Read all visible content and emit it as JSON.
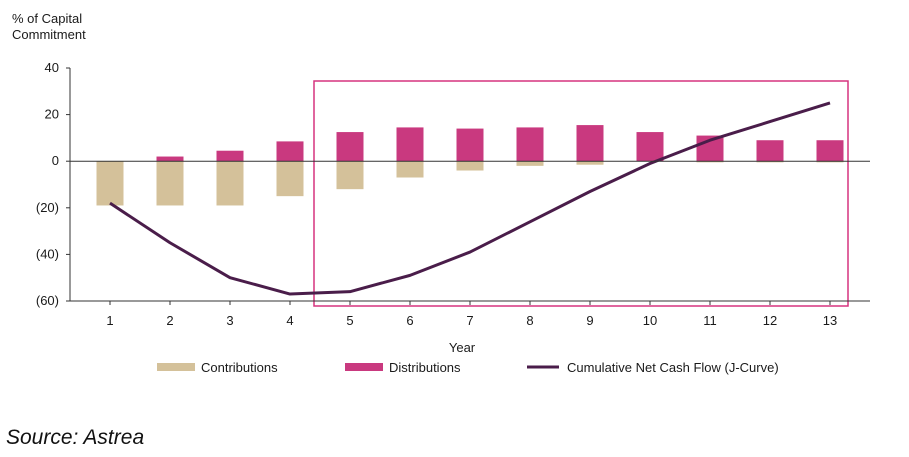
{
  "chart_data": {
    "type": "bar",
    "ylabel": "% of Capital\nCommitment",
    "xlabel": "Year",
    "categories": [
      "1",
      "2",
      "3",
      "4",
      "5",
      "6",
      "7",
      "8",
      "9",
      "10",
      "11",
      "12",
      "13"
    ],
    "ylim": [
      -60,
      40
    ],
    "yticks": [
      40,
      20,
      0,
      -20,
      -40,
      -60
    ],
    "ytick_labels": [
      "40",
      "20",
      "0",
      "(20)",
      "(40)",
      "(60)"
    ],
    "grid": false,
    "legend_position": "bottom",
    "series": [
      {
        "name": "Contributions",
        "kind": "bar",
        "color": "#d4c19a",
        "values": [
          -19,
          -19,
          -19,
          -15,
          -12,
          -7,
          -4,
          -2,
          -1.5,
          0,
          -0.5,
          -0.5,
          -0.5
        ]
      },
      {
        "name": "Distributions",
        "kind": "bar",
        "color": "#c9397f",
        "values": [
          0,
          2,
          4.5,
          8.5,
          12.5,
          14.5,
          14,
          14.5,
          15.5,
          12.5,
          11,
          9,
          9
        ]
      },
      {
        "name": "Cumulative Net Cash Flow (J-Curve)",
        "kind": "line",
        "color": "#4a1d4a",
        "values": [
          -18,
          -35,
          -50,
          -57,
          -56,
          -49,
          -39,
          -26,
          -13,
          -1,
          9,
          17,
          25
        ]
      }
    ],
    "highlight": {
      "from_category": "5",
      "to_category": "13",
      "color": "#d6337f"
    }
  },
  "source": "Source: Astrea"
}
